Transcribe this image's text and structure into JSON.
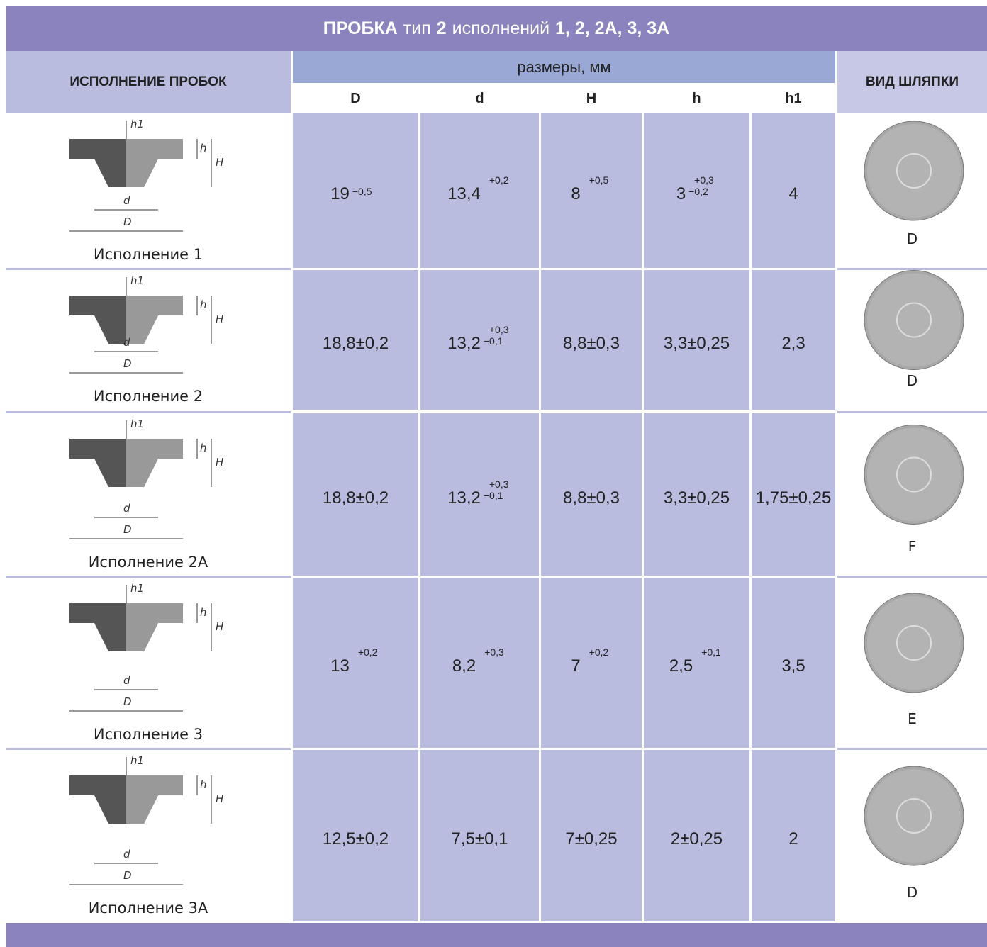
{
  "title": [
    "ПРОБКА",
    "тип",
    "2",
    "исполнений",
    "1, 2, 2А, 3, 3А"
  ],
  "header": {
    "first": "ИСПОЛНЕНИЕ ПРОБОК",
    "group": "размеры, мм",
    "dims": [
      "D",
      "d",
      "H",
      "h",
      "h1"
    ],
    "last": "ВИД ШЛЯПКИ"
  },
  "rows": [
    {
      "name": "Исполнение 1",
      "labels": [
        "h1",
        "h",
        "H",
        "d",
        "D"
      ],
      "hat": "D",
      "cells": [
        {
          "main": "19",
          "lower": "−0,5"
        },
        {
          "main": "13,4",
          "upper": "+0,2"
        },
        {
          "main": "8",
          "upper": "+0,5"
        },
        {
          "main": "3",
          "upper": "+0,3",
          "lower": "−0,2"
        },
        {
          "main": "4"
        }
      ]
    },
    {
      "name": "Исполнение 2",
      "labels": [
        "h1",
        "h",
        "H",
        "d",
        "D"
      ],
      "hat": "D",
      "cells": [
        {
          "main": "18,8±0,2"
        },
        {
          "main": "13,2",
          "upper": "+0,3",
          "lower": "−0,1"
        },
        {
          "main": "8,8±0,3"
        },
        {
          "main": "3,3±0,25"
        },
        {
          "main": "2,3"
        }
      ]
    },
    {
      "name": "Исполнение 2А",
      "labels": [
        "h1",
        "h",
        "H",
        "d",
        "D"
      ],
      "hat": "F",
      "cells": [
        {
          "main": "18,8±0,2"
        },
        {
          "main": "13,2",
          "upper": "+0,3",
          "lower": "−0,1"
        },
        {
          "main": "8,8±0,3"
        },
        {
          "main": "3,3±0,25"
        },
        {
          "main": "1,75±0,25"
        }
      ]
    },
    {
      "name": "Исполнение 3",
      "labels": [
        "h1",
        "h",
        "H",
        "d",
        "D"
      ],
      "hat": "E",
      "cells": [
        {
          "main": "13",
          "upper": "+0,2"
        },
        {
          "main": "8,2",
          "upper": "+0,3"
        },
        {
          "main": "7",
          "upper": "+0,2"
        },
        {
          "main": "2,5",
          "upper": "+0,1"
        },
        {
          "main": "3,5"
        }
      ]
    },
    {
      "name": "Исполнение 3А",
      "labels": [
        "h1",
        "h",
        "H",
        "d",
        "D"
      ],
      "hat": "D",
      "cells": [
        {
          "main": "12,5±0,2"
        },
        {
          "main": "7,5±0,1"
        },
        {
          "main": "7±0,25"
        },
        {
          "main": "2±0,25"
        },
        {
          "main": "2"
        }
      ]
    }
  ]
}
